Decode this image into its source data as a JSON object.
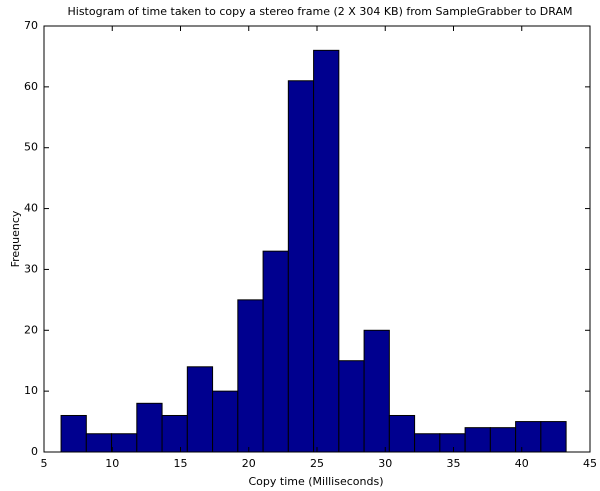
{
  "chart_data": {
    "type": "histogram",
    "title": "Histogram of time taken to copy a stereo frame (2 X 304 KB) from SampleGrabber to DRAM",
    "xlabel": "Copy time (Milliseconds)",
    "ylabel": "Frequency",
    "bins": [
      6.25,
      8.1,
      9.95,
      11.8,
      13.65,
      15.5,
      17.35,
      19.2,
      21.05,
      22.9,
      24.75,
      26.6,
      28.45,
      30.3,
      32.15,
      34.0,
      35.85,
      37.7,
      39.55,
      41.4,
      43.25
    ],
    "values": [
      6,
      3,
      3,
      8,
      6,
      14,
      10,
      25,
      33,
      61,
      66,
      15,
      20,
      6,
      3,
      3,
      4,
      4,
      5,
      5
    ],
    "color": "#00008f",
    "xlim": [
      5,
      45
    ],
    "xticks": [
      5,
      10,
      15,
      20,
      25,
      30,
      35,
      40,
      45
    ],
    "ylim": [
      0,
      70
    ],
    "yticks": [
      0,
      10,
      20,
      30,
      40,
      50,
      60,
      70
    ]
  }
}
